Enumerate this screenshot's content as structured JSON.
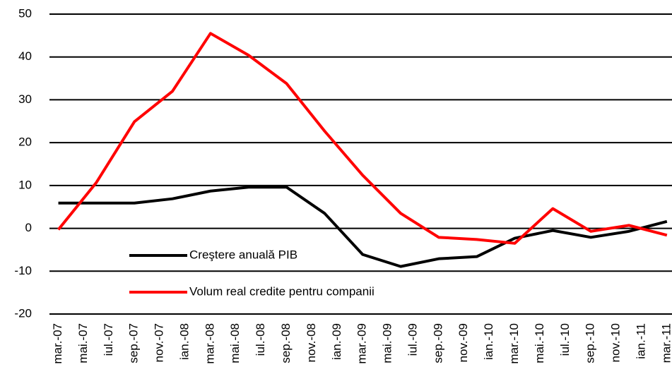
{
  "chart_data": {
    "type": "line",
    "x": [
      0,
      3,
      6,
      9,
      12,
      15,
      18,
      21,
      24,
      27,
      30,
      33,
      36,
      39,
      42,
      45,
      48
    ],
    "xlim": [
      -0.7,
      48.4
    ],
    "xticks": [
      {
        "value": 0,
        "label": "mar.-07"
      },
      {
        "value": 2,
        "label": "mai.-07"
      },
      {
        "value": 4,
        "label": "iul.-07"
      },
      {
        "value": 6,
        "label": "sep.-07"
      },
      {
        "value": 8,
        "label": "nov.-07"
      },
      {
        "value": 10,
        "label": "ian.-08"
      },
      {
        "value": 12,
        "label": "mar.-08"
      },
      {
        "value": 14,
        "label": "mai.-08"
      },
      {
        "value": 16,
        "label": "iul.-08"
      },
      {
        "value": 18,
        "label": "sep.-08"
      },
      {
        "value": 20,
        "label": "nov.-08"
      },
      {
        "value": 22,
        "label": "ian.-09"
      },
      {
        "value": 24,
        "label": "mar.-09"
      },
      {
        "value": 26,
        "label": "mai.-09"
      },
      {
        "value": 28,
        "label": "iul.-09"
      },
      {
        "value": 30,
        "label": "sep.-09"
      },
      {
        "value": 32,
        "label": "nov.-09"
      },
      {
        "value": 34,
        "label": "ian.-10"
      },
      {
        "value": 36,
        "label": "mar.-10"
      },
      {
        "value": 38,
        "label": "mai.-10"
      },
      {
        "value": 40,
        "label": "iul.-10"
      },
      {
        "value": 42,
        "label": "sep.-10"
      },
      {
        "value": 44,
        "label": "nov.-10"
      },
      {
        "value": 46,
        "label": "ian.-11"
      },
      {
        "value": 48,
        "label": "mar.-11"
      }
    ],
    "ylim": [
      -20,
      50
    ],
    "yticks": [
      -20,
      -10,
      0,
      10,
      20,
      30,
      40,
      50
    ],
    "grid": true,
    "series": [
      {
        "name": "Creştere anuală  PIB",
        "color": "#000000",
        "values": [
          5.9,
          5.9,
          5.9,
          6.9,
          8.7,
          9.6,
          9.6,
          3.5,
          -6.1,
          -8.9,
          -7.1,
          -6.6,
          -2.3,
          -0.5,
          -2.1,
          -0.7,
          1.6
        ]
      },
      {
        "name": "Volum real credite  pentru  companii",
        "color": "#ff0000",
        "values": [
          -0.3,
          10.7,
          24.9,
          32,
          45.5,
          40.4,
          33.8,
          22.7,
          12.4,
          3.5,
          -2.1,
          -2.6,
          -3.5,
          4.6,
          -0.7,
          0.7,
          -1.6
        ]
      }
    ]
  }
}
